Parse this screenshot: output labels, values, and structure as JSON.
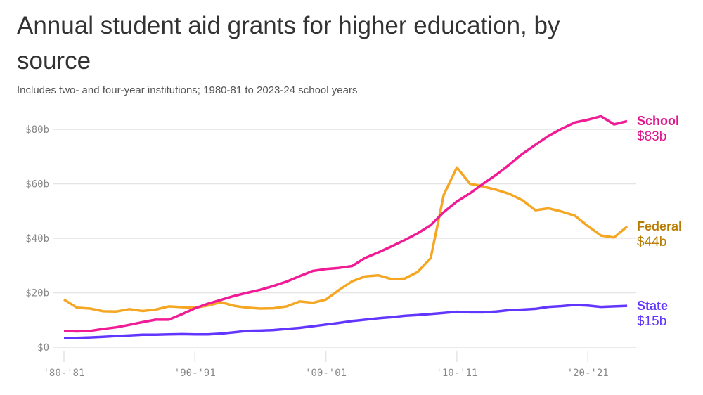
{
  "chart_data": {
    "type": "line",
    "title": "Annual student aid grants for higher education, by source",
    "subtitle": "Includes two- and four-year institutions; 1980-81 to 2023-24 school years",
    "xlabel": "",
    "ylabel": "",
    "ylim": [
      0,
      85
    ],
    "grid": true,
    "y_ticks": [
      {
        "v": 0,
        "label": "$0"
      },
      {
        "v": 20,
        "label": "$20b"
      },
      {
        "v": 40,
        "label": "$40b"
      },
      {
        "v": 60,
        "label": "$60b"
      },
      {
        "v": 80,
        "label": "$80b"
      }
    ],
    "x_ticks": [
      {
        "v": 1980,
        "label": "'80-'81"
      },
      {
        "v": 1990,
        "label": "'90-'91"
      },
      {
        "v": 2000,
        "label": "'00-'01"
      },
      {
        "v": 2010,
        "label": "'10-'11"
      },
      {
        "v": 2020,
        "label": "'20-'21"
      }
    ],
    "x": [
      1980,
      1981,
      1982,
      1983,
      1984,
      1985,
      1986,
      1987,
      1988,
      1989,
      1990,
      1991,
      1992,
      1993,
      1994,
      1995,
      1996,
      1997,
      1998,
      1999,
      2000,
      2001,
      2002,
      2003,
      2004,
      2005,
      2006,
      2007,
      2008,
      2009,
      2010,
      2011,
      2012,
      2013,
      2014,
      2015,
      2016,
      2017,
      2018,
      2019,
      2020,
      2021,
      2022,
      2023
    ],
    "series": [
      {
        "name": "Federal",
        "end_label": "$44b",
        "color": "#f5a623",
        "label_color": "#b87d00",
        "values": [
          17.5,
          14.5,
          14.2,
          13.2,
          13.1,
          14.0,
          13.3,
          13.8,
          15.0,
          14.7,
          14.5,
          15.3,
          16.5,
          15.2,
          14.5,
          14.2,
          14.3,
          15.0,
          16.8,
          16.3,
          17.5,
          21.0,
          24.2,
          26.0,
          26.4,
          25.0,
          25.2,
          27.6,
          32.7,
          56.0,
          66.0,
          60.0,
          59.0,
          57.8,
          56.3,
          54.0,
          50.3,
          51.0,
          49.8,
          48.3,
          44.5,
          41.0,
          40.3,
          44.3
        ]
      },
      {
        "name": "School",
        "end_label": "$83b",
        "color": "#f01c96",
        "label_color": "#e0168c",
        "values": [
          6.0,
          5.8,
          6.0,
          6.7,
          7.3,
          8.2,
          9.2,
          10.1,
          10.1,
          12.1,
          14.3,
          16.0,
          17.4,
          18.8,
          20.0,
          21.1,
          22.5,
          24.1,
          26.1,
          28.0,
          28.7,
          29.1,
          29.8,
          32.8,
          34.8,
          37.0,
          39.3,
          41.8,
          44.8,
          49.6,
          53.5,
          56.5,
          60.0,
          63.3,
          67.0,
          71.0,
          74.3,
          77.6,
          80.2,
          82.5,
          83.5,
          84.8,
          81.8,
          83.0
        ]
      },
      {
        "name": "State",
        "end_label": "$15b",
        "color": "#6236ff",
        "label_color": "#6236ff",
        "values": [
          3.3,
          3.4,
          3.6,
          3.8,
          4.1,
          4.3,
          4.6,
          4.6,
          4.7,
          4.8,
          4.7,
          4.7,
          5.0,
          5.5,
          6.0,
          6.1,
          6.3,
          6.7,
          7.1,
          7.7,
          8.3,
          8.9,
          9.6,
          10.1,
          10.6,
          11.0,
          11.5,
          11.8,
          12.2,
          12.6,
          13.0,
          12.8,
          12.8,
          13.1,
          13.6,
          13.8,
          14.1,
          14.8,
          15.1,
          15.5,
          15.3,
          14.8,
          15.0,
          15.2
        ]
      }
    ]
  }
}
